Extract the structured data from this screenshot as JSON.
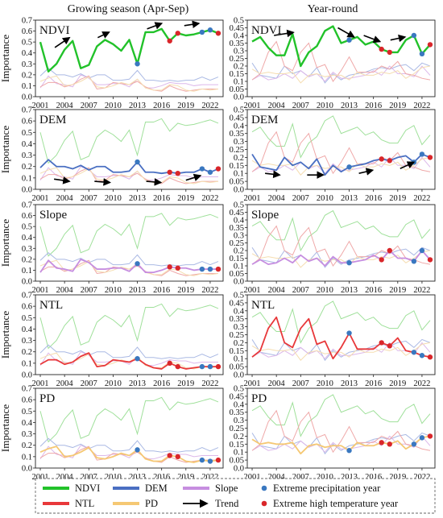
{
  "column_titles": [
    "Growing season (Apr-Sep)",
    "Year-round"
  ],
  "y_label": "Importance",
  "x_ticks": [
    2001,
    2004,
    2007,
    2010,
    2013,
    2016,
    2019,
    2022
  ],
  "legend": {
    "items": [
      {
        "name": "NDVI",
        "color": "#22c22a"
      },
      {
        "name": "NTL",
        "color": "#e8383a"
      },
      {
        "name": "DEM",
        "color": "#4a6fc2"
      },
      {
        "name": "PD",
        "color": "#f5c873"
      },
      {
        "name": "Slope",
        "color": "#c68ee0"
      },
      {
        "name": "Trend",
        "color": "#000000"
      }
    ],
    "markers": [
      {
        "label": "Extreme precipitation year",
        "color": "#3a78c0"
      },
      {
        "label": "Extreme high temperature year",
        "color": "#d9262a"
      }
    ]
  },
  "colors": {
    "NDVI": "#22c22a",
    "DEM": "#4a6fc2",
    "Slope": "#c68ee0",
    "NTL": "#e8383a",
    "PD": "#f5c873",
    "bg_NDVI": "#9fe09a",
    "bg_DEM": "#aab9e4",
    "bg_Slope": "#dcb8ea",
    "bg_NTL": "#efa8a8",
    "bg_PD": "#f5ddb0",
    "bg_other": "#c9c9c9",
    "precip": "#3a78c0",
    "heat": "#d9262a"
  },
  "chart_data": {
    "type": "line",
    "years": [
      2001,
      2002,
      2003,
      2004,
      2005,
      2006,
      2007,
      2008,
      2009,
      2010,
      2011,
      2012,
      2013,
      2014,
      2015,
      2016,
      2017,
      2018,
      2019,
      2020,
      2021,
      2022,
      2023
    ],
    "marker_years": {
      "precipitation": [
        2013,
        2021,
        2022
      ],
      "high_temperature": [
        2017,
        2018,
        2023
      ]
    },
    "columns": [
      {
        "title": "Growing season (Apr-Sep)",
        "ylim": [
          0,
          0.7
        ],
        "yticks": [
          0.0,
          0.1,
          0.2,
          0.3,
          0.4,
          0.5,
          0.6,
          0.7
        ],
        "series": {
          "NDVI": [
            0.5,
            0.23,
            0.3,
            0.43,
            0.51,
            0.26,
            0.29,
            0.46,
            0.52,
            0.48,
            0.42,
            0.52,
            0.3,
            0.59,
            0.59,
            0.62,
            0.51,
            0.58,
            0.56,
            0.57,
            0.59,
            0.61,
            0.58
          ],
          "DEM": [
            0.19,
            0.26,
            0.2,
            0.2,
            0.18,
            0.21,
            0.17,
            0.2,
            0.2,
            0.15,
            0.15,
            0.16,
            0.24,
            0.15,
            0.15,
            0.14,
            0.15,
            0.14,
            0.15,
            0.15,
            0.18,
            0.15,
            0.18
          ],
          "Slope": [
            0.08,
            0.19,
            0.12,
            0.11,
            0.09,
            0.2,
            0.17,
            0.11,
            0.11,
            0.12,
            0.12,
            0.09,
            0.16,
            0.08,
            0.08,
            0.1,
            0.13,
            0.12,
            0.12,
            0.1,
            0.11,
            0.11,
            0.11
          ],
          "NTL": [
            0.09,
            0.13,
            0.13,
            0.09,
            0.11,
            0.16,
            0.19,
            0.07,
            0.08,
            0.13,
            0.12,
            0.11,
            0.14,
            0.09,
            0.06,
            0.05,
            0.1,
            0.07,
            0.05,
            0.06,
            0.07,
            0.07,
            0.07
          ],
          "PD": [
            0.14,
            0.17,
            0.19,
            0.1,
            0.11,
            0.14,
            0.18,
            0.09,
            0.08,
            0.1,
            0.13,
            0.11,
            0.16,
            0.08,
            0.06,
            0.06,
            0.11,
            0.1,
            0.06,
            0.05,
            0.07,
            0.06,
            0.07
          ]
        },
        "trends": {
          "NDVI": [
            [
              2002.8,
              0.45,
              2004.6,
              0.54
            ],
            [
              2008.1,
              0.54,
              2009.5,
              0.59
            ],
            [
              2014.2,
              0.62,
              2016.0,
              0.67
            ],
            [
              2018.8,
              0.65,
              2020.6,
              0.67
            ]
          ],
          "DEM": [
            [
              2002.7,
              0.09,
              2004.6,
              0.07
            ],
            [
              2007.7,
              0.07,
              2009.6,
              0.06
            ],
            [
              2014.1,
              0.07,
              2015.9,
              0.06
            ],
            [
              2019.0,
              0.08,
              2020.8,
              0.12
            ]
          ]
        }
      },
      {
        "title": "Year-round",
        "ylim": [
          0,
          0.5
        ],
        "yticks": [
          0.0,
          0.05,
          0.1,
          0.15,
          0.2,
          0.25,
          0.3,
          0.35,
          0.4,
          0.45,
          0.5
        ],
        "series": {
          "NDVI": [
            0.36,
            0.39,
            0.32,
            0.27,
            0.27,
            0.41,
            0.2,
            0.29,
            0.33,
            0.43,
            0.46,
            0.35,
            0.37,
            0.39,
            0.34,
            0.36,
            0.31,
            0.29,
            0.29,
            0.37,
            0.4,
            0.28,
            0.34
          ],
          "DEM": [
            0.22,
            0.14,
            0.13,
            0.12,
            0.2,
            0.15,
            0.17,
            0.13,
            0.19,
            0.09,
            0.15,
            0.11,
            0.14,
            0.15,
            0.16,
            0.18,
            0.19,
            0.18,
            0.2,
            0.21,
            0.17,
            0.22,
            0.2
          ],
          "Slope": [
            0.11,
            0.14,
            0.11,
            0.12,
            0.15,
            0.12,
            0.17,
            0.13,
            0.15,
            0.1,
            0.16,
            0.12,
            0.12,
            0.13,
            0.14,
            0.17,
            0.14,
            0.2,
            0.15,
            0.15,
            0.13,
            0.2,
            0.14
          ],
          "NTL": [
            0.11,
            0.15,
            0.29,
            0.36,
            0.2,
            0.17,
            0.29,
            0.35,
            0.19,
            0.21,
            0.1,
            0.17,
            0.26,
            0.16,
            0.16,
            0.16,
            0.2,
            0.18,
            0.23,
            0.15,
            0.14,
            0.12,
            0.11
          ],
          "PD": [
            0.18,
            0.15,
            0.16,
            0.15,
            0.15,
            0.16,
            0.09,
            0.14,
            0.15,
            0.13,
            0.14,
            0.14,
            0.11,
            0.16,
            0.14,
            0.14,
            0.16,
            0.15,
            0.17,
            0.12,
            0.15,
            0.19,
            0.2
          ]
        },
        "trends": {
          "NDVI": [
            [
              2003.7,
              0.4,
              2006.1,
              0.42
            ],
            [
              2011.6,
              0.45,
              2013.6,
              0.39
            ],
            [
              2014.8,
              0.4,
              2016.8,
              0.36
            ],
            [
              2018.1,
              0.37,
              2019.9,
              0.39
            ]
          ],
          "DEM": [
            [
              2002.6,
              0.1,
              2004.4,
              0.09
            ],
            [
              2007.8,
              0.09,
              2009.8,
              0.09
            ],
            [
              2014.2,
              0.1,
              2015.9,
              0.12
            ],
            [
              2019.3,
              0.13,
              2021.0,
              0.17
            ]
          ]
        }
      }
    ],
    "rows": [
      {
        "label": "NDVI",
        "variable": "NDVI"
      },
      {
        "label": "DEM",
        "variable": "DEM"
      },
      {
        "label": "Slope",
        "variable": "Slope"
      },
      {
        "label": "NTL",
        "variable": "NTL"
      },
      {
        "label": "PD",
        "variable": "PD"
      }
    ]
  }
}
